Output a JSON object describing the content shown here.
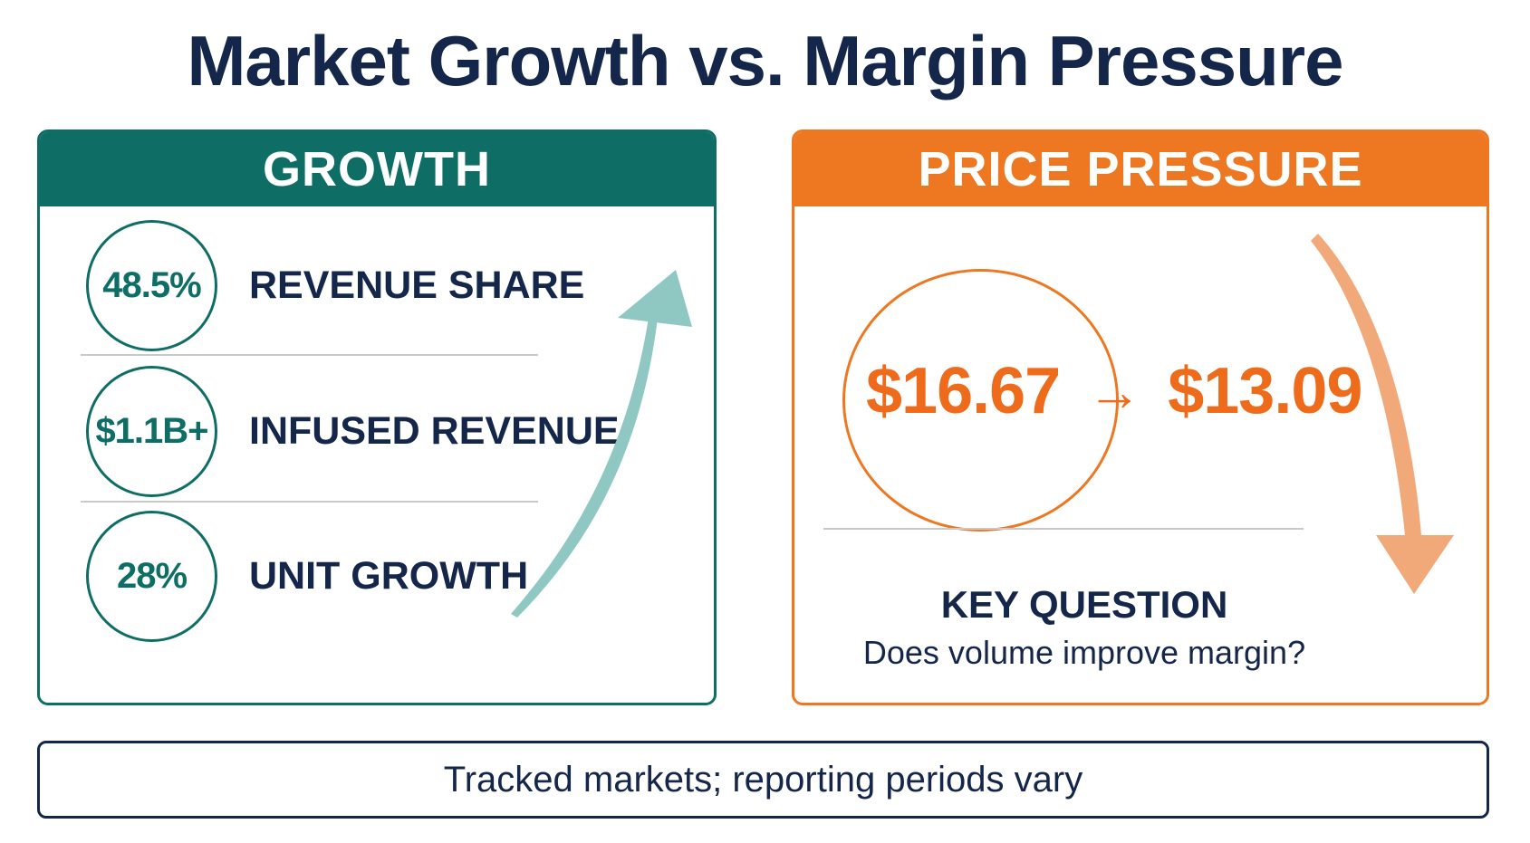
{
  "title": "Market Growth vs. Margin Pressure",
  "colors": {
    "growth": "#0e6e66",
    "price": "#ee7722",
    "navy": "#14264a",
    "growth_arrow": "#8fc8c2",
    "price_arrow": "#f2a97a"
  },
  "growth": {
    "header": "GROWTH",
    "metrics": [
      {
        "value": "48.5%",
        "label": "REVENUE SHARE"
      },
      {
        "value": "$1.1B+",
        "label": "INFUSED REVENUE"
      },
      {
        "value": "28%",
        "label": "UNIT GROWTH"
      }
    ],
    "trend_icon": "rising-arrow-icon"
  },
  "price": {
    "header": "PRICE PRESSURE",
    "from": "$16.67",
    "arrow": "→",
    "to": "$13.09",
    "key_question": "KEY QUESTION",
    "key_sub": "Does volume improve margin?",
    "trend_icon": "falling-arrow-icon"
  },
  "footer": "Tracked markets; reporting periods vary"
}
